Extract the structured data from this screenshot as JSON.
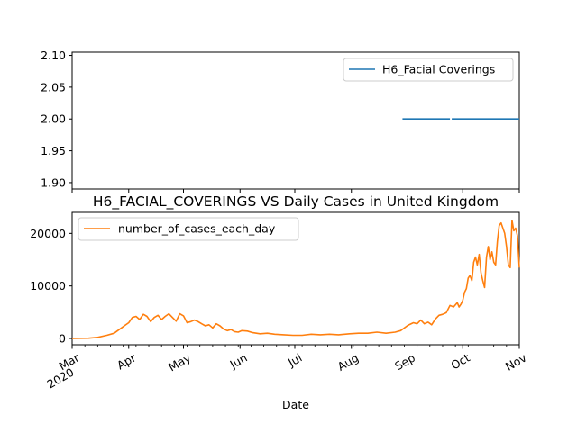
{
  "chart_data": [
    {
      "type": "line",
      "title": "",
      "xlabel": "",
      "ylabel": "",
      "ylim": [
        1.89,
        2.105
      ],
      "yticks": [
        "1.90",
        "1.95",
        "2.00",
        "2.05",
        "2.10"
      ],
      "grid": false,
      "legend_position": "top-right",
      "series": [
        {
          "name": "H6_Facial Coverings",
          "color": "#1f77b4",
          "segments": [
            {
              "start": "2020-08-29",
              "end": "2020-09-24",
              "value": 2.0
            },
            {
              "start": "2020-09-25",
              "end": "2020-11-01",
              "value": 2.0
            }
          ]
        }
      ]
    },
    {
      "type": "line",
      "title": "H6_FACIAL_COVERINGS VS Daily Cases in United Kingdom",
      "xlabel": "Date",
      "ylabel": "",
      "ylim": [
        -1200,
        24000
      ],
      "yticks": [
        "0",
        "10000",
        "20000"
      ],
      "xlim": [
        "2020-03-01",
        "2020-11-01"
      ],
      "xticks": [
        {
          "date": "2020-03-01",
          "label": "Mar",
          "sublabel": "2020"
        },
        {
          "date": "2020-04-01",
          "label": "Apr"
        },
        {
          "date": "2020-05-01",
          "label": "May"
        },
        {
          "date": "2020-06-01",
          "label": "Jun"
        },
        {
          "date": "2020-07-01",
          "label": "Jul"
        },
        {
          "date": "2020-08-01",
          "label": "Aug"
        },
        {
          "date": "2020-09-01",
          "label": "Sep"
        },
        {
          "date": "2020-10-01",
          "label": "Oct"
        },
        {
          "date": "2020-11-01",
          "label": "Nov"
        }
      ],
      "grid": false,
      "legend_position": "top-left",
      "series": [
        {
          "name": "number_of_cases_each_day",
          "color": "#ff7f0e",
          "x": [
            "2020-03-01",
            "2020-03-10",
            "2020-03-15",
            "2020-03-20",
            "2020-03-24",
            "2020-03-28",
            "2020-03-30",
            "2020-04-01",
            "2020-04-03",
            "2020-04-05",
            "2020-04-07",
            "2020-04-09",
            "2020-04-11",
            "2020-04-13",
            "2020-04-15",
            "2020-04-17",
            "2020-04-19",
            "2020-04-21",
            "2020-04-23",
            "2020-04-25",
            "2020-04-27",
            "2020-04-29",
            "2020-05-01",
            "2020-05-03",
            "2020-05-05",
            "2020-05-07",
            "2020-05-09",
            "2020-05-11",
            "2020-05-13",
            "2020-05-15",
            "2020-05-17",
            "2020-05-19",
            "2020-05-21",
            "2020-05-23",
            "2020-05-25",
            "2020-05-27",
            "2020-05-29",
            "2020-05-31",
            "2020-06-02",
            "2020-06-05",
            "2020-06-08",
            "2020-06-12",
            "2020-06-16",
            "2020-06-20",
            "2020-06-25",
            "2020-06-30",
            "2020-07-05",
            "2020-07-10",
            "2020-07-15",
            "2020-07-20",
            "2020-07-25",
            "2020-07-31",
            "2020-08-05",
            "2020-08-10",
            "2020-08-15",
            "2020-08-20",
            "2020-08-25",
            "2020-08-28",
            "2020-09-01",
            "2020-09-04",
            "2020-09-06",
            "2020-09-08",
            "2020-09-10",
            "2020-09-12",
            "2020-09-14",
            "2020-09-16",
            "2020-09-18",
            "2020-09-20",
            "2020-09-22",
            "2020-09-24",
            "2020-09-26",
            "2020-09-28",
            "2020-09-29",
            "2020-09-30",
            "2020-10-01",
            "2020-10-02",
            "2020-10-03",
            "2020-10-04",
            "2020-10-05",
            "2020-10-06",
            "2020-10-07",
            "2020-10-08",
            "2020-10-09",
            "2020-10-10",
            "2020-10-11",
            "2020-10-12",
            "2020-10-13",
            "2020-10-14",
            "2020-10-15",
            "2020-10-16",
            "2020-10-17",
            "2020-10-18",
            "2020-10-19",
            "2020-10-20",
            "2020-10-21",
            "2020-10-22",
            "2020-10-23",
            "2020-10-24",
            "2020-10-25",
            "2020-10-26",
            "2020-10-27",
            "2020-10-28",
            "2020-10-29",
            "2020-10-30",
            "2020-10-31",
            "2020-11-01"
          ],
          "values": [
            0,
            50,
            200,
            600,
            1000,
            2000,
            2500,
            3000,
            4000,
            4200,
            3600,
            4600,
            4200,
            3200,
            4000,
            4400,
            3600,
            4200,
            4700,
            4000,
            3300,
            4700,
            4300,
            3000,
            3200,
            3500,
            3200,
            2800,
            2400,
            2600,
            2000,
            2800,
            2400,
            1800,
            1500,
            1700,
            1300,
            1200,
            1500,
            1400,
            1100,
            900,
            1000,
            800,
            700,
            600,
            600,
            800,
            700,
            800,
            700,
            900,
            1000,
            1000,
            1200,
            1000,
            1200,
            1500,
            2500,
            3000,
            2800,
            3500,
            2800,
            3100,
            2600,
            3700,
            4400,
            4600,
            4900,
            6300,
            6000,
            6800,
            6000,
            6500,
            7200,
            8800,
            9500,
            11500,
            12000,
            11000,
            14500,
            15500,
            14000,
            16000,
            12500,
            11000,
            9700,
            15500,
            17500,
            15000,
            16500,
            14500,
            14000,
            18500,
            21500,
            22000,
            21000,
            20000,
            17500,
            14000,
            13500,
            22500,
            20500,
            21000,
            19500,
            13500
          ]
        }
      ]
    }
  ]
}
